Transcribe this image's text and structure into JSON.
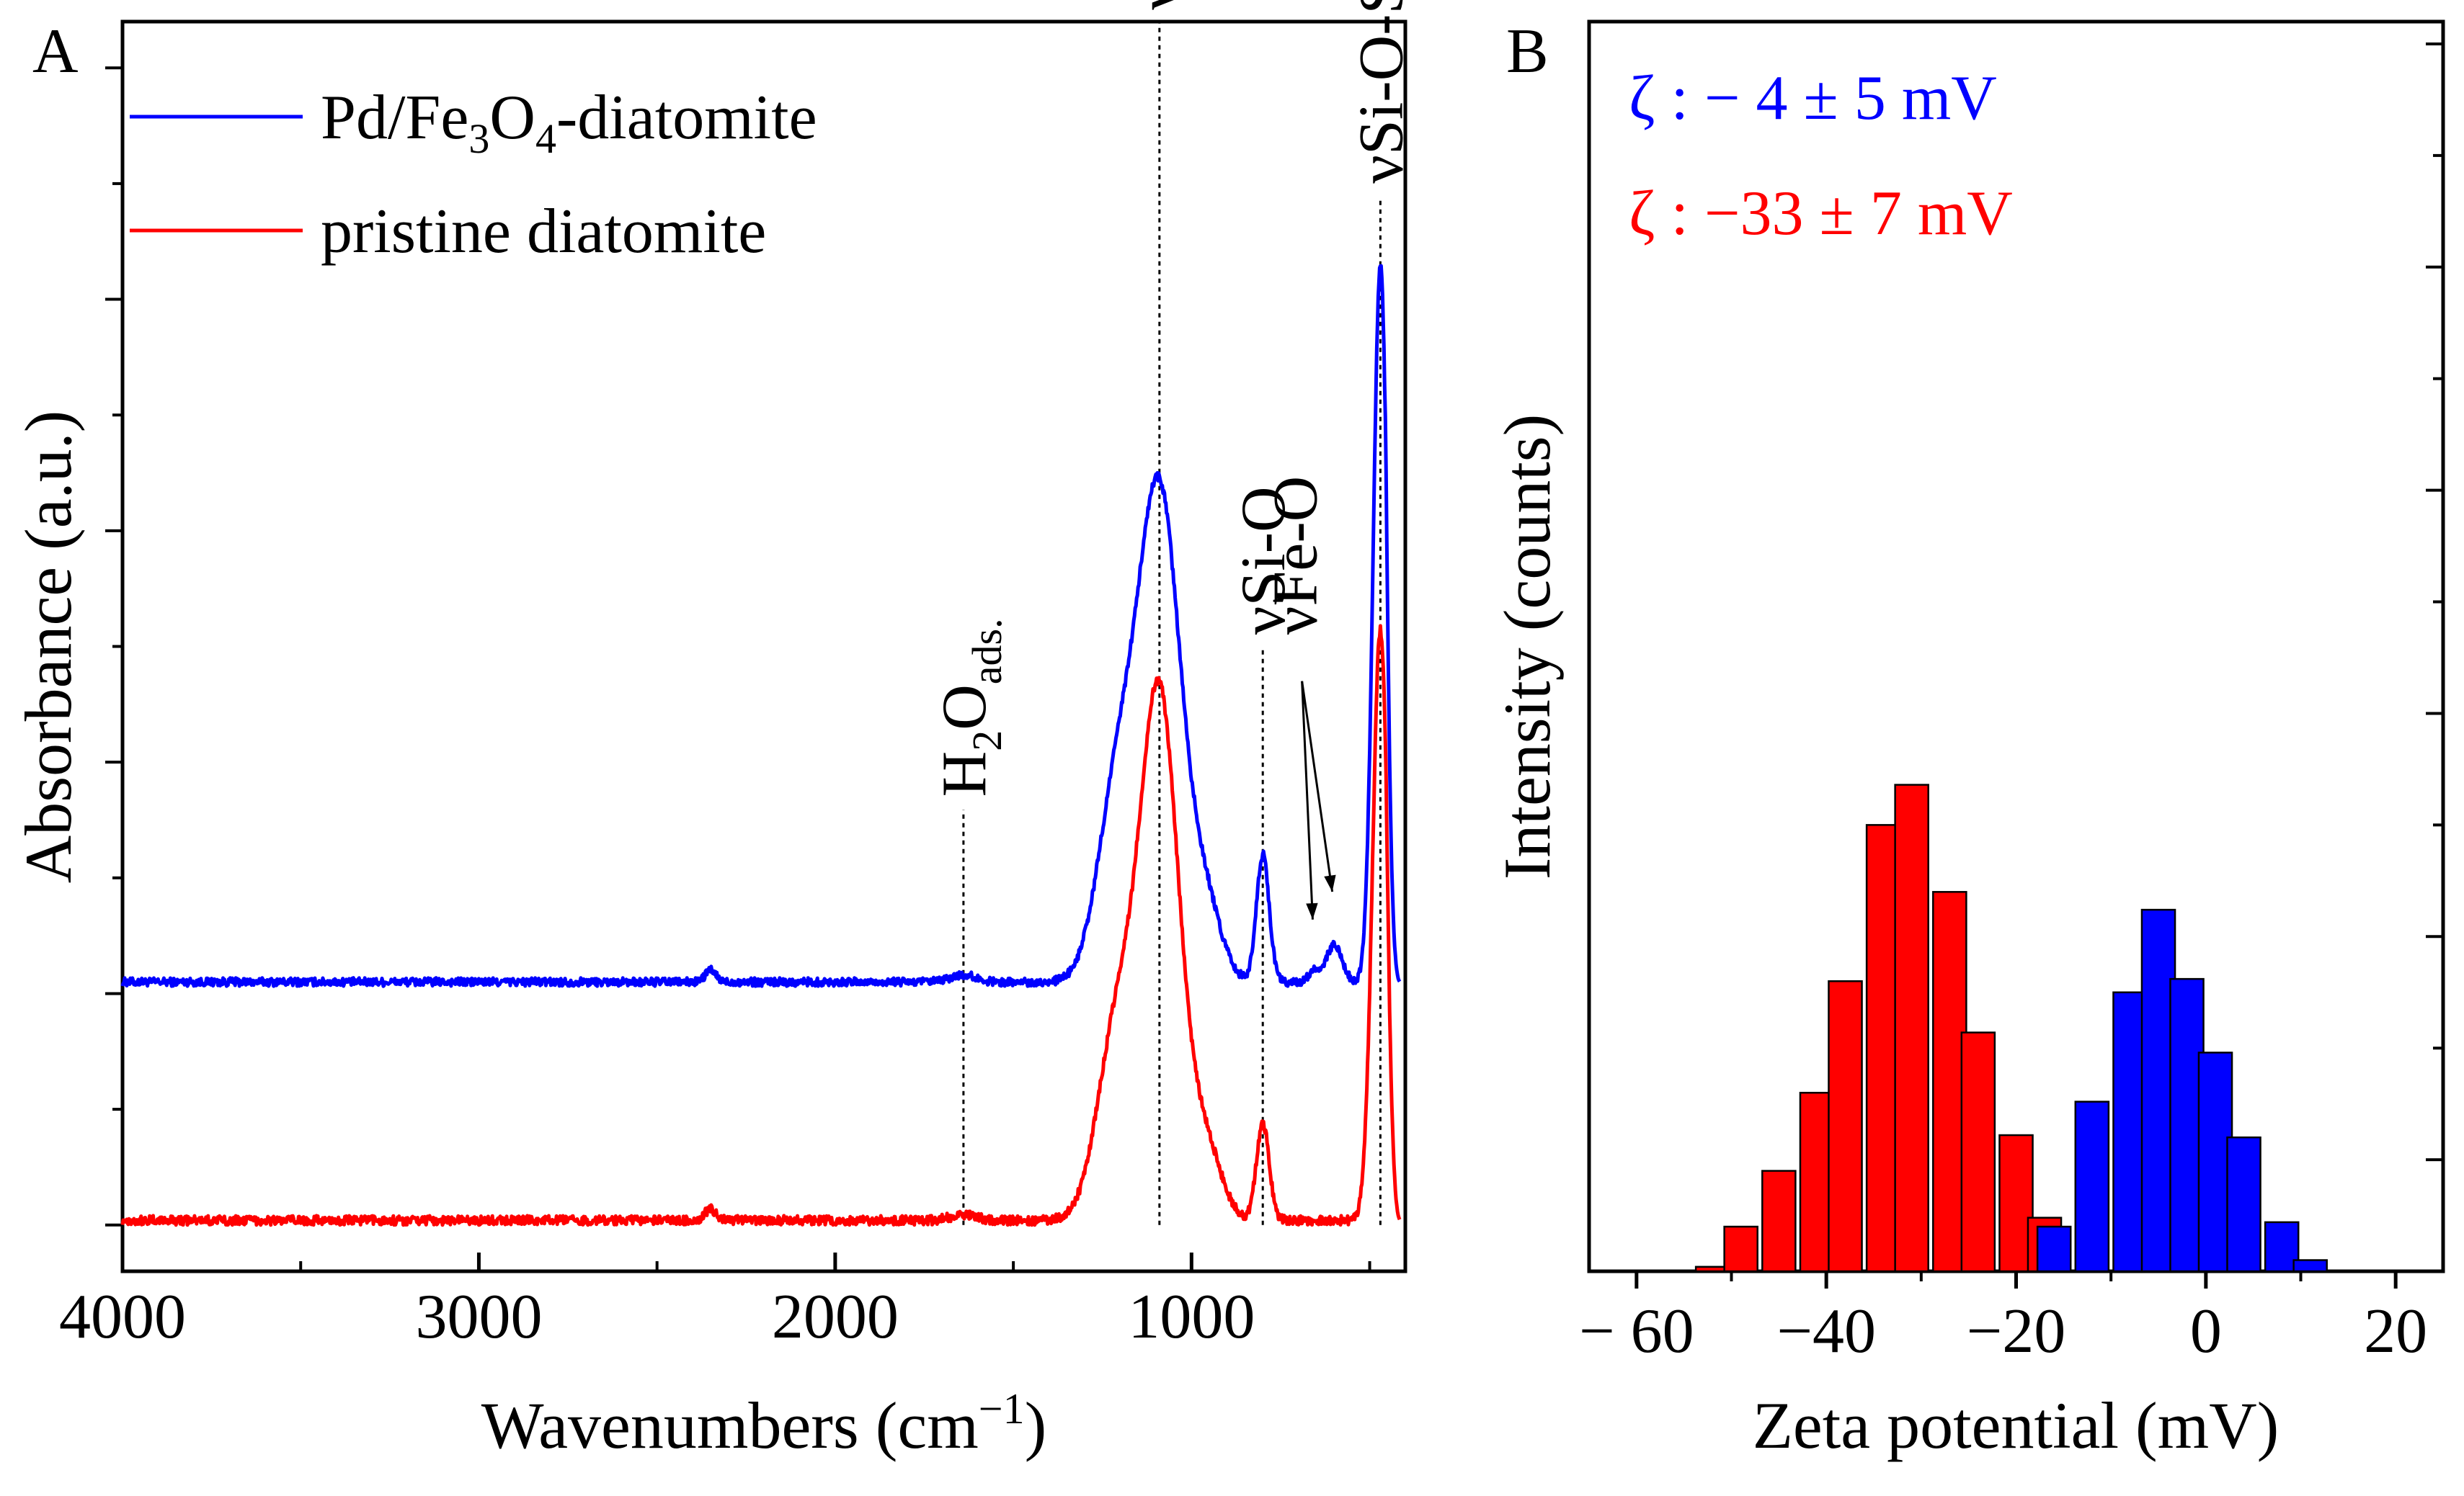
{
  "chart_data": [
    {
      "panel": "A",
      "type": "line",
      "xlabel": "Wavenumbers (cm",
      "xlabel_sup": "−1",
      "xlabel_end": ")",
      "ylabel": "Absorbance (a.u.)",
      "xlim": [
        4000,
        400
      ],
      "ylim": [
        -0.2,
        5.2
      ],
      "x_ticks": [
        4000,
        3000,
        2000,
        1000
      ],
      "x_tick_labels": [
        "4000",
        "3000",
        "2000",
        "1000"
      ],
      "y_ticks": [
        0,
        0.5,
        1,
        1.5,
        2,
        2.5,
        3,
        3.5,
        4,
        4.5,
        5
      ],
      "legend": [
        {
          "name": "Pd/Fe",
          "sub1": "3",
          "mid": "O",
          "sub2": "4",
          "tail": "-diatomite",
          "color": "#0000ff"
        },
        {
          "name": "pristine diatomite",
          "color": "#ff0000"
        }
      ],
      "series": [
        {
          "name": "Pd/Fe3O4-diatomite",
          "color": "#0000ff",
          "baseline": 1.05,
          "noise": 0.018,
          "peaks": [
            {
              "center": 2350,
              "height": 0.05,
              "width": 15
            },
            {
              "center": 1640,
              "height": 0.03,
              "width": 35
            },
            {
              "center": 1210,
              "height": 0.78,
              "width": 55
            },
            {
              "center": 1090,
              "height": 2.1,
              "width": 60
            },
            {
              "center": 960,
              "height": 0.3,
              "width": 45
            },
            {
              "center": 800,
              "height": 0.55,
              "width": 18
            },
            {
              "center": 660,
              "height": 0.05,
              "width": 12
            },
            {
              "center": 600,
              "height": 0.16,
              "width": 22
            },
            {
              "center": 470,
              "height": 3.1,
              "width": 20
            }
          ]
        },
        {
          "name": "pristine diatomite",
          "color": "#ff0000",
          "baseline": 0.02,
          "noise": 0.02,
          "peaks": [
            {
              "center": 2350,
              "height": 0.05,
              "width": 15
            },
            {
              "center": 1640,
              "height": 0.025,
              "width": 35
            },
            {
              "center": 1210,
              "height": 0.8,
              "width": 55
            },
            {
              "center": 1090,
              "height": 2.25,
              "width": 55
            },
            {
              "center": 960,
              "height": 0.3,
              "width": 45
            },
            {
              "center": 800,
              "height": 0.42,
              "width": 18
            },
            {
              "center": 470,
              "height": 2.55,
              "width": 22
            }
          ]
        }
      ],
      "annotations": [
        {
          "label": "νSi-O",
          "x": 1090,
          "y_top": 5.25,
          "y_bottom": 0.0
        },
        {
          "label": "νSi-O",
          "x": 800,
          "y_top": 2.55,
          "y_bottom": 0.0
        },
        {
          "label": "νFe-O",
          "x": 710,
          "y_top": 2.55,
          "y_bottom": null
        },
        {
          "label": "νSi-O-Si",
          "x": 470,
          "y_top": 4.5,
          "y_bottom": 0.0
        },
        {
          "label_main": "H",
          "label_sub1": "2",
          "label_mid": "O",
          "label_sub2": "ads.",
          "x": 1640,
          "y_top": 1.85,
          "y_bottom": 0.0
        }
      ]
    },
    {
      "panel": "B",
      "type": "bar",
      "xlabel": "Zeta potential (mV)",
      "ylabel": "Intensity (counts)",
      "xlim": [
        -65,
        25
      ],
      "ylim": [
        0,
        5.6
      ],
      "x_ticks": [
        -60,
        -40,
        -20,
        0,
        20
      ],
      "x_tick_labels": [
        "− 60",
        "−40",
        "−20",
        "0",
        "20"
      ],
      "y_ticks": [
        0,
        0.5,
        1,
        1.5,
        2,
        2.5,
        3,
        3.5,
        4,
        4.5,
        5,
        5.5
      ],
      "bar_width": 3.5,
      "annotations": [
        {
          "text": "ζ : − 4 ± 5 mV",
          "color": "#0000ff"
        },
        {
          "text": "ζ : −33 ± 7 mV",
          "color": "#ff0000"
        }
      ],
      "series": [
        {
          "name": "Pd/Fe3O4-diatomite",
          "color": "#0000ff",
          "x": [
            -16,
            -12,
            -8,
            -5,
            -2,
            1,
            4,
            8,
            11
          ],
          "values": [
            0.2,
            0.76,
            1.25,
            1.62,
            1.31,
            0.98,
            0.6,
            0.22,
            0.05
          ]
        },
        {
          "name": "pristine diatomite",
          "color": "#ff0000",
          "x": [
            -52,
            -49,
            -45,
            -41,
            -38,
            -34,
            -31,
            -27,
            -24,
            -20,
            -17
          ],
          "values": [
            0.02,
            0.2,
            0.45,
            0.8,
            1.3,
            2.0,
            2.18,
            1.7,
            1.07,
            0.61,
            0.24
          ]
        }
      ]
    }
  ],
  "panel_labels": {
    "a": "A",
    "b": "B"
  }
}
